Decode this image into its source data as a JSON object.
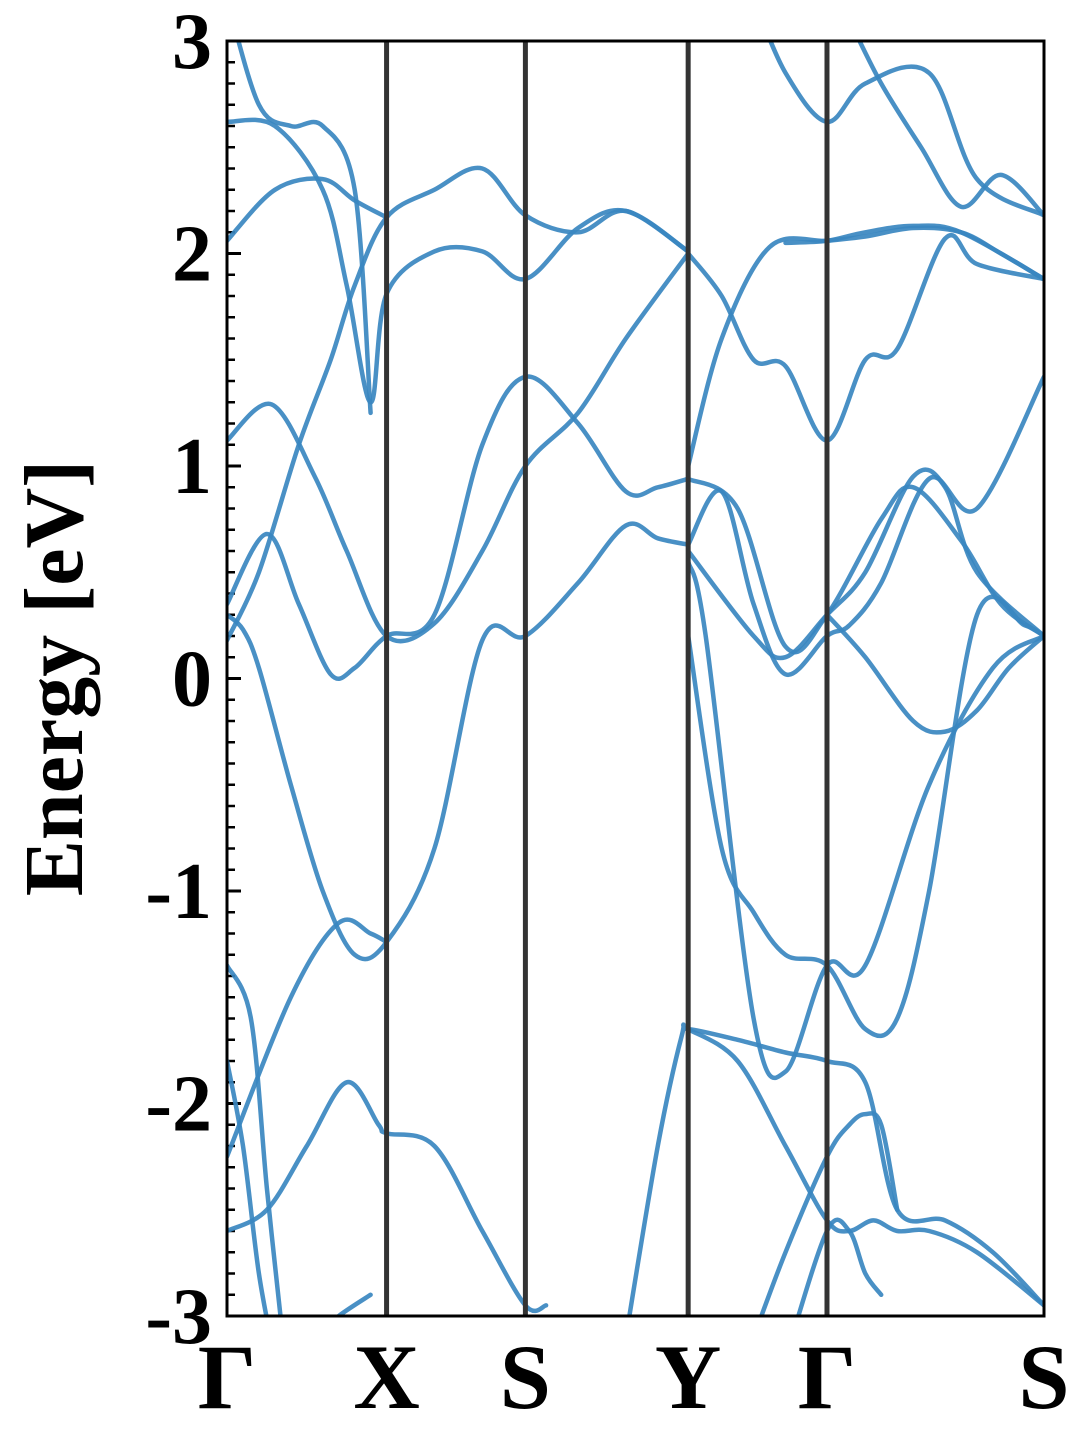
{
  "chart_data": {
    "type": "line",
    "title": "",
    "xlabel": "",
    "ylabel": "Energy [eV]",
    "ylim": [
      -3,
      3
    ],
    "xlim": [
      0,
      5.12
    ],
    "grid": false,
    "legend": "none",
    "y_ticks": [
      "-3",
      "-2",
      "-1",
      "0",
      "1",
      "2",
      "3"
    ],
    "k_points": [
      {
        "label": "Γ",
        "x": 0
      },
      {
        "label": "X",
        "x": 1.0
      },
      {
        "label": "S",
        "x": 1.87
      },
      {
        "label": "Y",
        "x": 2.89
      },
      {
        "label": "Γ",
        "x": 3.76
      },
      {
        "label": "S",
        "x": 5.12
      }
    ],
    "band_color": "#3a87c0",
    "divider_color": "#333333",
    "series": [
      {
        "x": [
          0,
          0.1,
          0.2,
          0.4,
          0.6,
          0.8,
          1.0,
          1.3,
          1.6,
          1.87,
          2.2,
          2.5,
          2.7,
          2.89
        ],
        "values": [
          0.3,
          0.23,
          0.05,
          -0.5,
          -1.0,
          -1.3,
          -1.24,
          -0.8,
          0.18,
          0.2,
          0.45,
          0.72,
          0.66,
          0.63
        ]
      },
      {
        "x": [
          0,
          0.25,
          0.45,
          0.65,
          0.8,
          1.0,
          1.3,
          1.6,
          1.87,
          2.2,
          2.5,
          2.7,
          2.89
        ],
        "values": [
          0.35,
          0.68,
          0.35,
          0.02,
          0.05,
          0.2,
          0.3,
          1.1,
          1.42,
          1.2,
          0.88,
          0.9,
          0.94
        ]
      },
      {
        "x": [
          0,
          0.28,
          0.55,
          0.75,
          1.0,
          1.3,
          1.6,
          1.87,
          2.2,
          2.5,
          2.89
        ],
        "values": [
          1.12,
          1.29,
          0.95,
          0.6,
          0.2,
          0.26,
          0.6,
          1.0,
          1.25,
          1.6,
          2.0
        ]
      },
      {
        "x": [
          0,
          0.2,
          0.45,
          0.65,
          0.8,
          1.0,
          1.3,
          1.6,
          1.87,
          2.2,
          2.5,
          2.89
        ],
        "values": [
          0.18,
          0.5,
          1.1,
          1.5,
          1.85,
          2.17,
          2.3,
          2.4,
          2.18,
          2.1,
          2.2,
          2.01
        ]
      },
      {
        "x": [
          0,
          0.3,
          0.6,
          0.75,
          0.9,
          1.0,
          1.3,
          1.6,
          1.87,
          2.2,
          2.5,
          2.89
        ],
        "values": [
          2.62,
          2.6,
          2.3,
          1.85,
          1.3,
          1.81,
          2.01,
          2.01,
          1.88,
          2.12,
          2.2,
          2.01
        ]
      },
      {
        "x": [
          0,
          0.3,
          0.6,
          0.8,
          1.0
        ],
        "values": [
          2.06,
          2.3,
          2.35,
          2.25,
          2.17
        ]
      },
      {
        "x": [
          0,
          0.2,
          0.4,
          0.6,
          0.8,
          0.9
        ],
        "values": [
          3.2,
          2.7,
          2.6,
          2.6,
          2.3,
          1.25
        ]
      },
      {
        "x": [
          0,
          0.25,
          0.5,
          0.75,
          0.95,
          1.0,
          1.3,
          1.6,
          1.87,
          2.0
        ],
        "values": [
          -2.6,
          -2.5,
          -2.2,
          -1.9,
          -2.1,
          -2.14,
          -2.2,
          -2.6,
          -2.95,
          -2.95
        ]
      },
      {
        "x": [
          0,
          0.4,
          0.7,
          0.9,
          1.0
        ],
        "values": [
          -2.25,
          -1.5,
          -1.15,
          -1.2,
          -1.24
        ]
      },
      {
        "x": [
          0,
          0.15,
          0.25,
          0.35
        ],
        "values": [
          -1.35,
          -1.6,
          -2.4,
          -3.1
        ]
      },
      {
        "x": [
          0,
          0.1,
          0.2,
          0.3
        ],
        "values": [
          -1.8,
          -2.2,
          -2.8,
          -3.2
        ]
      },
      {
        "x": [
          0.55,
          0.7,
          0.9
        ],
        "values": [
          -3.1,
          -3.0,
          -2.9
        ]
      },
      {
        "x": [
          2.5,
          2.7,
          2.85,
          2.89,
          3.2,
          3.5,
          3.76,
          4.0,
          4.2,
          4.5,
          4.8,
          5.12
        ],
        "values": [
          -3.1,
          -2.2,
          -1.68,
          -1.65,
          -1.7,
          -1.76,
          -1.8,
          -1.9,
          -2.5,
          -2.55,
          -2.7,
          -2.95
        ]
      },
      {
        "x": [
          2.89,
          3.2,
          3.5,
          3.76,
          3.9,
          4.05,
          4.2,
          4.4,
          4.7,
          5.12
        ],
        "values": [
          -1.65,
          -1.8,
          -2.2,
          -2.55,
          -2.6,
          -2.55,
          -2.6,
          -2.6,
          -2.7,
          -2.95
        ]
      },
      {
        "x": [
          3.3,
          3.5,
          3.76,
          3.9,
          4.0,
          4.1,
          4.2
        ],
        "values": [
          -3.1,
          -2.7,
          -2.25,
          -2.1,
          -2.05,
          -2.1,
          -2.5
        ]
      },
      {
        "x": [
          3.5,
          3.76,
          3.9,
          4.0,
          4.1
        ],
        "values": [
          -3.2,
          -2.6,
          -2.6,
          -2.8,
          -2.9
        ]
      },
      {
        "x": [
          2.89,
          3.1,
          3.3,
          3.5,
          3.76,
          3.9,
          4.1,
          4.4,
          4.7,
          5.12
        ],
        "values": [
          0.63,
          0.88,
          0.35,
          0.02,
          0.2,
          0.25,
          0.45,
          0.94,
          0.8,
          1.42
        ]
      },
      {
        "x": [
          2.89,
          3.1,
          3.4,
          3.76,
          4.0,
          4.3,
          4.6,
          4.85,
          5.12
        ],
        "values": [
          1.0,
          1.6,
          2.03,
          2.06,
          2.08,
          2.12,
          2.1,
          2.0,
          1.88
        ]
      },
      {
        "x": [
          2.89,
          3.2,
          3.5,
          3.76,
          4.1,
          4.3,
          4.6,
          4.85,
          5.12
        ],
        "values": [
          0.94,
          0.8,
          0.15,
          0.3,
          0.75,
          0.9,
          0.65,
          0.35,
          0.2
        ]
      },
      {
        "x": [
          2.89,
          3.3,
          3.5,
          3.76,
          4.0,
          4.3,
          4.5,
          4.7,
          5.12
        ],
        "values": [
          0.6,
          0.2,
          0.1,
          0.3,
          0.5,
          0.95,
          0.9,
          0.5,
          0.2
        ]
      },
      {
        "x": [
          2.89,
          3.1,
          3.3,
          3.5,
          3.76,
          4.0,
          4.2,
          4.4,
          4.7,
          5.0,
          5.12
        ],
        "values": [
          0.2,
          -0.8,
          -1.1,
          -1.3,
          -1.35,
          -1.65,
          -1.6,
          -1.0,
          0.3,
          0.25,
          0.2
        ]
      },
      {
        "x": [
          2.89,
          3.0,
          3.3,
          3.5,
          3.76,
          4.0,
          4.4,
          4.8,
          5.12
        ],
        "values": [
          0.55,
          0.2,
          -1.6,
          -1.85,
          -1.35,
          -1.35,
          -0.5,
          0.05,
          0.2
        ]
      },
      {
        "x": [
          2.89,
          3.1,
          3.3,
          3.5,
          3.76,
          4.0,
          4.2,
          4.5,
          4.7,
          5.12
        ],
        "values": [
          2.0,
          1.8,
          1.5,
          1.47,
          1.12,
          1.5,
          1.55,
          2.07,
          1.95,
          1.88
        ]
      },
      {
        "x": [
          3.3,
          3.5,
          3.76,
          4.0,
          4.4,
          4.7,
          5.12
        ],
        "values": [
          3.2,
          2.85,
          2.62,
          2.8,
          2.85,
          2.35,
          2.18
        ]
      },
      {
        "x": [
          3.76,
          4.0,
          4.3,
          4.5,
          4.7,
          4.9,
          5.12
        ],
        "values": [
          0.3,
          0.1,
          -0.2,
          -0.25,
          -0.15,
          0.05,
          0.2
        ]
      },
      {
        "x": [
          3.5,
          3.76,
          4.0,
          4.3,
          4.6,
          5.12
        ],
        "values": [
          2.05,
          2.06,
          2.1,
          2.13,
          2.1,
          1.88
        ]
      },
      {
        "x": [
          3.9,
          4.1,
          4.35,
          4.6,
          4.85,
          5.12
        ],
        "values": [
          3.1,
          2.8,
          2.5,
          2.22,
          2.37,
          2.18
        ]
      }
    ]
  }
}
